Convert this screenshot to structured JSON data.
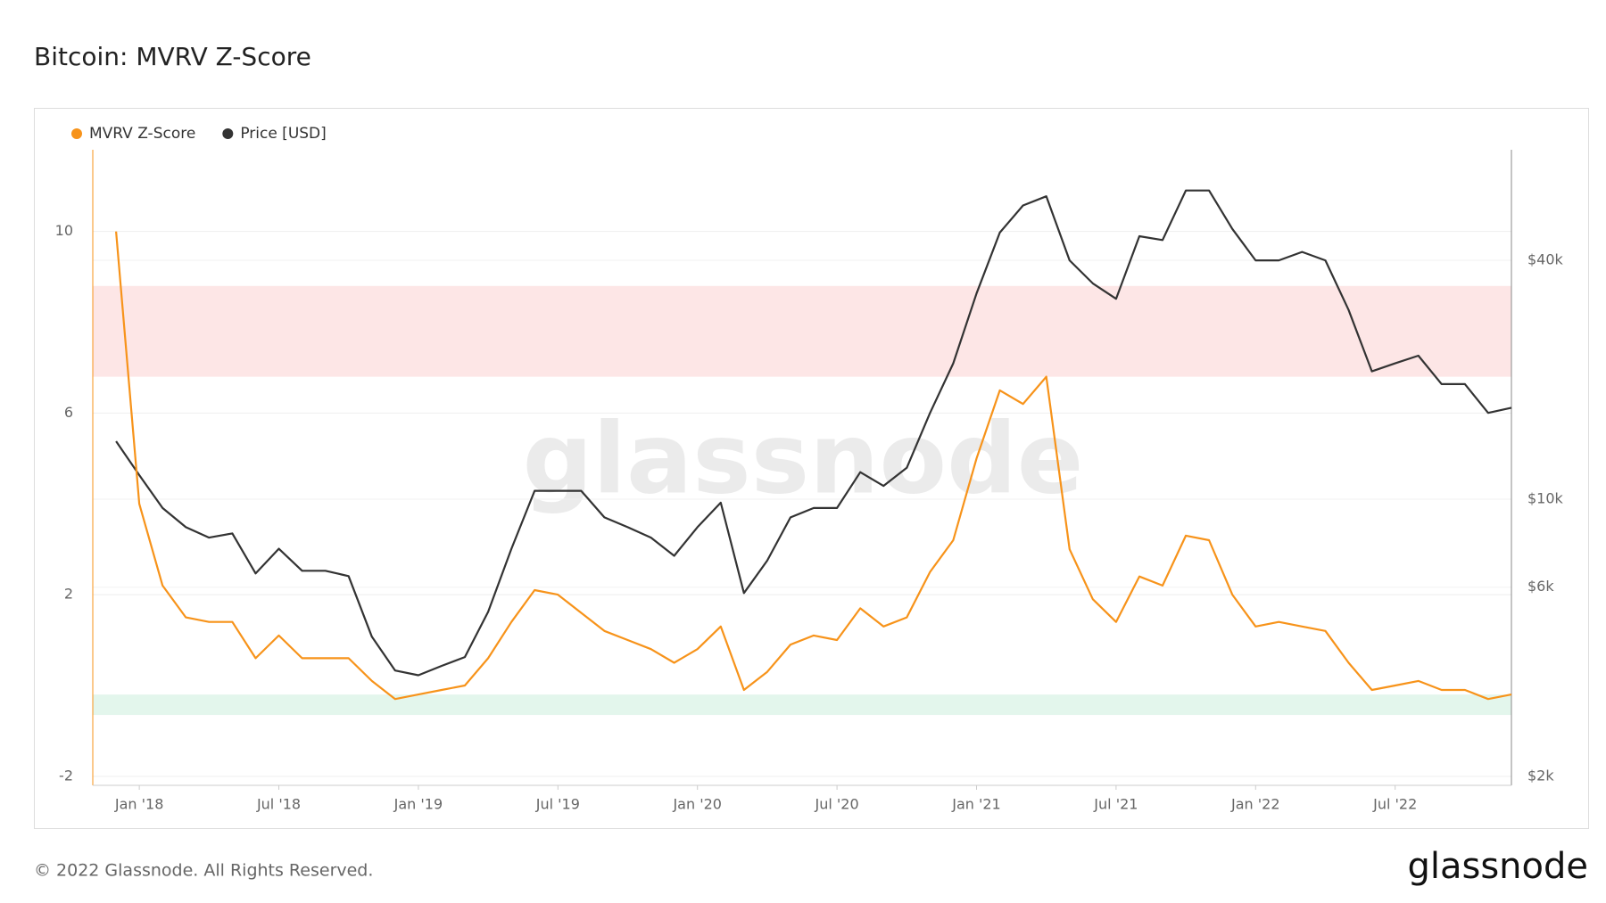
{
  "title": "Bitcoin: MVRV Z-Score",
  "footer": "© 2022 Glassnode. All Rights Reserved.",
  "logo": "glassnode",
  "watermark": "glassnode",
  "chart_data": {
    "type": "line",
    "x": [
      "2017-12",
      "2018-01",
      "2018-02",
      "2018-03",
      "2018-04",
      "2018-05",
      "2018-06",
      "2018-07",
      "2018-08",
      "2018-09",
      "2018-10",
      "2018-11",
      "2018-12",
      "2019-01",
      "2019-02",
      "2019-03",
      "2019-04",
      "2019-05",
      "2019-06",
      "2019-07",
      "2019-08",
      "2019-09",
      "2019-10",
      "2019-11",
      "2019-12",
      "2020-01",
      "2020-02",
      "2020-03",
      "2020-04",
      "2020-05",
      "2020-06",
      "2020-07",
      "2020-08",
      "2020-09",
      "2020-10",
      "2020-11",
      "2020-12",
      "2021-01",
      "2021-02",
      "2021-03",
      "2021-04",
      "2021-05",
      "2021-06",
      "2021-07",
      "2021-08",
      "2021-09",
      "2021-10",
      "2021-11",
      "2021-12",
      "2022-01",
      "2022-02",
      "2022-03",
      "2022-04",
      "2022-05",
      "2022-06",
      "2022-07",
      "2022-08",
      "2022-09",
      "2022-10",
      "2022-11",
      "2022-12"
    ],
    "xlim": [
      "2017-11",
      "2022-12"
    ],
    "xticks": [
      {
        "value": "2018-01",
        "label": "Jan '18"
      },
      {
        "value": "2018-07",
        "label": "Jul '18"
      },
      {
        "value": "2019-01",
        "label": "Jan '19"
      },
      {
        "value": "2019-07",
        "label": "Jul '19"
      },
      {
        "value": "2020-01",
        "label": "Jan '20"
      },
      {
        "value": "2020-07",
        "label": "Jul '20"
      },
      {
        "value": "2021-01",
        "label": "Jan '21"
      },
      {
        "value": "2021-07",
        "label": "Jul '21"
      },
      {
        "value": "2022-01",
        "label": "Jan '22"
      },
      {
        "value": "2022-07",
        "label": "Jul '22"
      }
    ],
    "ylim": [
      -2.2,
      11.8
    ],
    "yticks": [
      -2,
      2,
      6,
      10
    ],
    "y2lim": [
      1900,
      76000
    ],
    "y2scale": "log",
    "y2ticks": [
      {
        "value": 2000,
        "label": "$2k"
      },
      {
        "value": 6000,
        "label": "$6k"
      },
      {
        "value": 10000,
        "label": "$10k"
      },
      {
        "value": 40000,
        "label": "$40k"
      }
    ],
    "grid": true,
    "legend": "top-left",
    "bands": [
      {
        "from": 6.8,
        "to": 8.8,
        "color": "#fde6e6"
      },
      {
        "from": -0.65,
        "to": -0.2,
        "color": "#e3f6ec"
      }
    ],
    "series": [
      {
        "name": "MVRV Z-Score",
        "color": "#f7931a",
        "values": [
          10,
          4,
          2.2,
          1.5,
          1.4,
          1.4,
          0.6,
          1.1,
          0.6,
          0.6,
          0.6,
          0.1,
          -0.3,
          -0.2,
          -0.1,
          0.0,
          0.6,
          1.4,
          2.1,
          2.0,
          1.6,
          1.2,
          1.0,
          0.8,
          0.5,
          0.8,
          1.3,
          -0.1,
          0.3,
          0.9,
          1.1,
          1.0,
          1.7,
          1.3,
          1.5,
          2.5,
          3.2,
          5.0,
          6.5,
          6.2,
          6.8,
          3.0,
          1.9,
          1.4,
          2.4,
          2.2,
          3.3,
          3.2,
          2.0,
          1.3,
          1.4,
          1.3,
          1.2,
          0.5,
          -0.1,
          0.0,
          0.1,
          -0.1,
          -0.1,
          -0.3,
          -0.2
        ]
      },
      {
        "name": "Price [USD]",
        "color": "#333333",
        "axis": "y2",
        "values": [
          14000,
          11500,
          9500,
          8500,
          8000,
          8200,
          6500,
          7500,
          6600,
          6600,
          6400,
          4500,
          3700,
          3600,
          3800,
          4000,
          5200,
          7500,
          10500,
          10500,
          10500,
          9000,
          8500,
          8000,
          7200,
          8500,
          9800,
          5800,
          7000,
          9000,
          9500,
          9500,
          11700,
          10800,
          12000,
          16500,
          22000,
          33000,
          47000,
          55000,
          58000,
          40000,
          35000,
          32000,
          46000,
          45000,
          60000,
          60000,
          48000,
          40000,
          40000,
          42000,
          40000,
          30000,
          21000,
          22000,
          23000,
          19500,
          19500,
          16500,
          17000
        ]
      }
    ]
  }
}
